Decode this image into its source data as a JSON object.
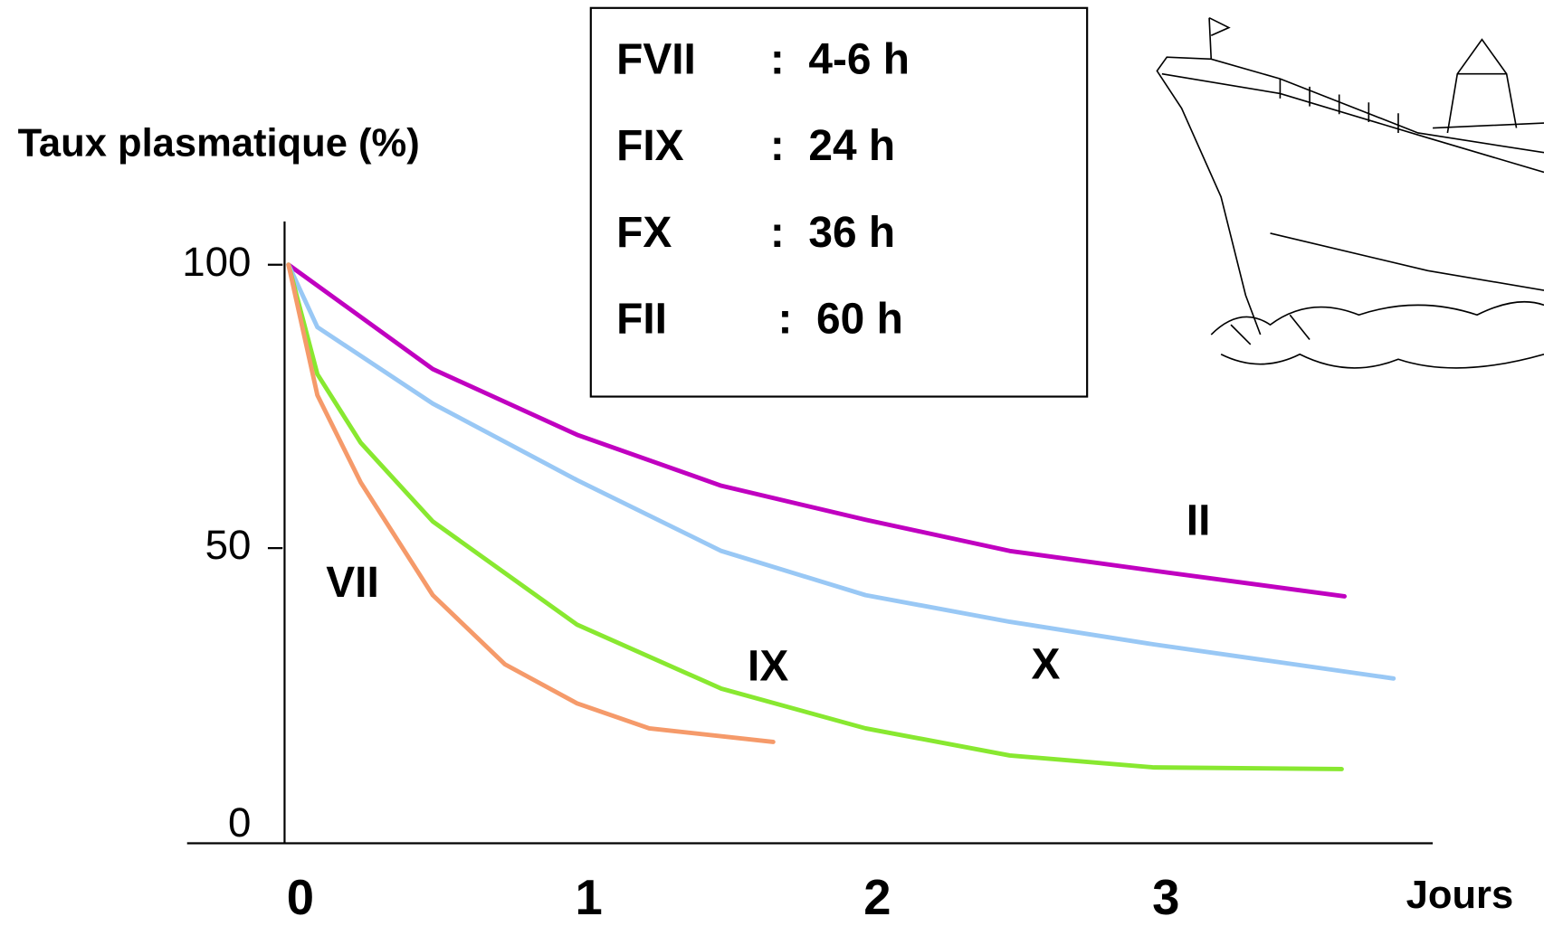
{
  "chart_data": {
    "type": "line",
    "y_label": "Taux plasmatique (%)",
    "x_label": "Jours",
    "xlim": [
      0,
      4
    ],
    "xticks": [
      0,
      1,
      2,
      3
    ],
    "ylim": [
      0,
      100
    ],
    "yticks": [
      0,
      50,
      100
    ],
    "series": [
      {
        "name": "II",
        "color": "#c000c0",
        "x": [
          0,
          0.5,
          1,
          1.5,
          2,
          2.5,
          3,
          3.66
        ],
        "values": [
          100,
          81.6,
          70,
          61,
          55,
          49.5,
          46,
          41.5
        ]
      },
      {
        "name": "X",
        "color": "#99c8f5",
        "x": [
          0,
          0.1,
          0.5,
          1,
          1.5,
          2,
          2.5,
          3,
          3.83
        ],
        "values": [
          100,
          89,
          75.5,
          62,
          49.5,
          41.7,
          37,
          33,
          27
        ]
      },
      {
        "name": "IX",
        "color": "#88e830",
        "x": [
          0,
          0.1,
          0.25,
          0.5,
          1,
          1.5,
          2,
          2.5,
          3,
          3.65
        ],
        "values": [
          100,
          80.7,
          68.6,
          54.7,
          36.5,
          25.2,
          18.2,
          13.4,
          11.3,
          11
        ]
      },
      {
        "name": "VII",
        "color": "#f59a6a",
        "x": [
          0,
          0.1,
          0.25,
          0.5,
          0.75,
          1,
          1.25,
          1.68
        ],
        "values": [
          100,
          77,
          61.6,
          41.7,
          29.5,
          22.6,
          18.2,
          15.8
        ]
      }
    ],
    "half_lives": [
      {
        "factor": "FVII",
        "value": ":  4-6 h"
      },
      {
        "factor": "FIX",
        "value": ":  24 h"
      },
      {
        "factor": "FX",
        "value": ":  36 h"
      },
      {
        "factor": "FII",
        "value": ":  60 h"
      }
    ]
  }
}
